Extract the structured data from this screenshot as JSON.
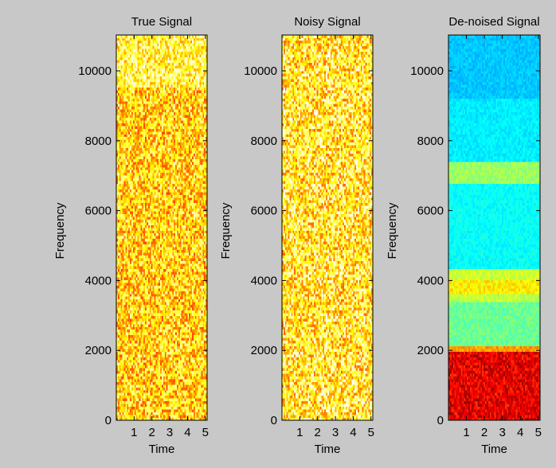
{
  "figure": {
    "background": "#c8c8c8"
  },
  "chart_data": [
    {
      "type": "heatmap",
      "title": "True  Signal",
      "xlabel": "Time",
      "ylabel": "Frequency",
      "xlim": [
        0,
        5.1
      ],
      "ylim": [
        0,
        11025
      ],
      "xticks": [
        "1",
        "2",
        "3",
        "4",
        "5"
      ],
      "yticks": [
        "0",
        "2000",
        "4000",
        "6000",
        "8000",
        "10000"
      ],
      "colormap": "hot",
      "bands": [
        {
          "from": 0,
          "to": 9500,
          "level": 0.7,
          "noise": 0.22
        },
        {
          "from": 9500,
          "to": 11025,
          "level": 0.8,
          "noise": 0.2
        }
      ]
    },
    {
      "type": "heatmap",
      "title": "Noisy Signal",
      "xlabel": "Time",
      "ylabel": "Frequency",
      "xlim": [
        0,
        5.1
      ],
      "ylim": [
        0,
        11025
      ],
      "xticks": [
        "1",
        "2",
        "3",
        "4",
        "5"
      ],
      "yticks": [
        "0",
        "2000",
        "4000",
        "6000",
        "8000",
        "10000"
      ],
      "colormap": "hot",
      "bands": [
        {
          "from": 0,
          "to": 11025,
          "level": 0.76,
          "noise": 0.24
        }
      ]
    },
    {
      "type": "heatmap",
      "title": "De-noised Signal",
      "xlabel": "Time",
      "ylabel": "Frequency",
      "xlim": [
        0,
        5.1
      ],
      "ylim": [
        0,
        11025
      ],
      "xticks": [
        "1",
        "2",
        "3",
        "4",
        "5"
      ],
      "yticks": [
        "0",
        "2000",
        "4000",
        "6000",
        "8000",
        "10000"
      ],
      "colormap": "jet",
      "bands": [
        {
          "from": 0,
          "to": 1950,
          "level": 0.9,
          "noise": 0.08
        },
        {
          "from": 1950,
          "to": 2150,
          "level": 0.72,
          "noise": 0.05
        },
        {
          "from": 2150,
          "to": 3400,
          "level": 0.48,
          "noise": 0.04
        },
        {
          "from": 3400,
          "to": 3650,
          "level": 0.56,
          "noise": 0.04
        },
        {
          "from": 3650,
          "to": 4000,
          "level": 0.64,
          "noise": 0.05
        },
        {
          "from": 4000,
          "to": 4350,
          "level": 0.58,
          "noise": 0.04
        },
        {
          "from": 4350,
          "to": 6750,
          "level": 0.38,
          "noise": 0.03
        },
        {
          "from": 6750,
          "to": 7400,
          "level": 0.53,
          "noise": 0.04
        },
        {
          "from": 7400,
          "to": 9200,
          "level": 0.36,
          "noise": 0.03
        },
        {
          "from": 9200,
          "to": 11025,
          "level": 0.32,
          "noise": 0.03
        }
      ]
    }
  ]
}
